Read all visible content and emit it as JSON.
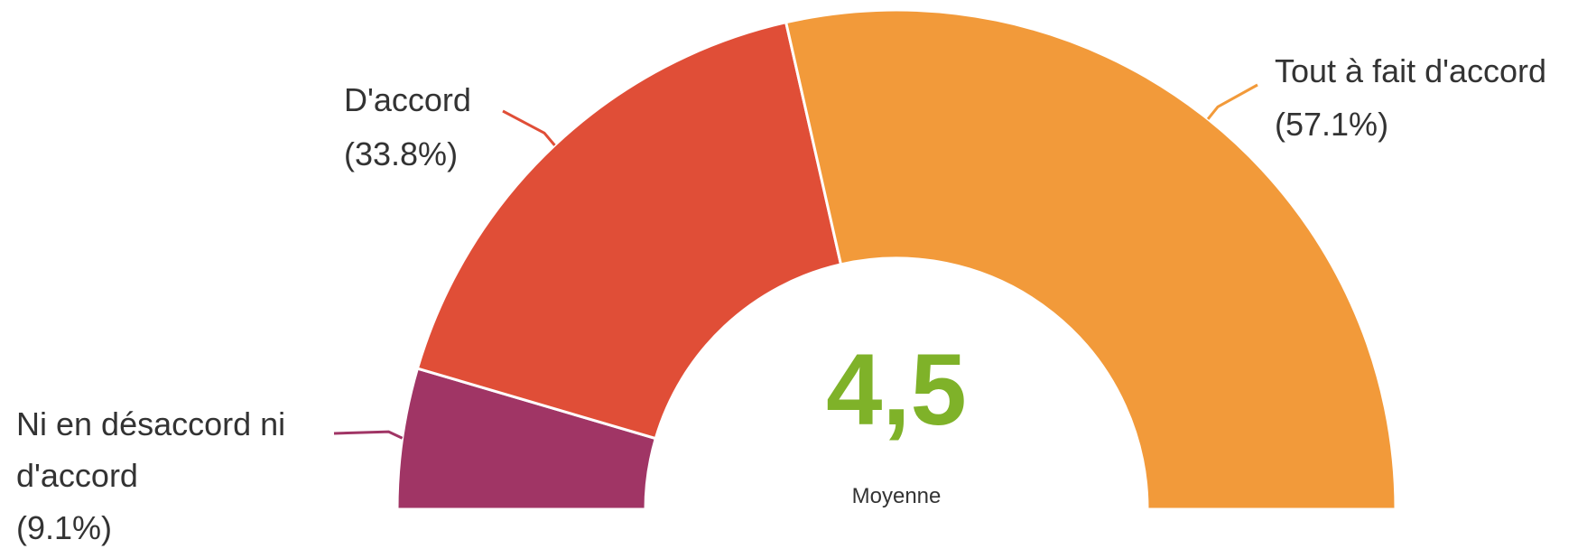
{
  "chart_data": {
    "type": "pie",
    "half": true,
    "categories": [
      "Ni en désaccord ni d'accord",
      "D'accord",
      "Tout à fait d'accord"
    ],
    "values": [
      9.1,
      33.8,
      57.1
    ],
    "value_labels": [
      "(9.1%)",
      "(33.8%)",
      "(57.1%)"
    ],
    "colors": [
      "#a03565",
      "#e04e37",
      "#f29a3a"
    ],
    "center": {
      "value": 4.5,
      "label": "4,5"
    },
    "center_caption": "Moyenne"
  }
}
